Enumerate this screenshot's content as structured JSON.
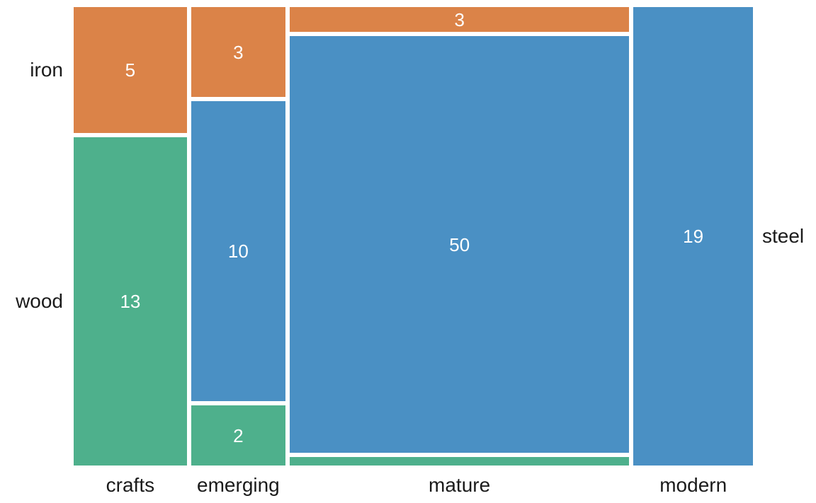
{
  "chart_data": {
    "type": "mosaic",
    "title": "",
    "background": "#ffffff",
    "label_color": "#1b1b1b",
    "cell_value_color": "#ffffff",
    "x_axis_labels": [
      "crafts",
      "emerging",
      "mature",
      "modern"
    ],
    "y_categories_top_to_bottom": [
      "iron",
      "steel",
      "wood"
    ],
    "colors": {
      "iron": "#db8348",
      "steel": "#4a90c4",
      "wood": "#4eb08c"
    },
    "cells": [
      {
        "x": "crafts",
        "y": "iron",
        "value": 5,
        "label": "5"
      },
      {
        "x": "crafts",
        "y": "wood",
        "value": 13,
        "label": "13"
      },
      {
        "x": "emerging",
        "y": "iron",
        "value": 3,
        "label": "3"
      },
      {
        "x": "emerging",
        "y": "steel",
        "value": 10,
        "label": "10"
      },
      {
        "x": "emerging",
        "y": "wood",
        "value": 2,
        "label": "2"
      },
      {
        "x": "mature",
        "y": "iron",
        "value": 3,
        "label": "3"
      },
      {
        "x": "mature",
        "y": "steel",
        "value": 50,
        "label": "50"
      },
      {
        "x": "mature",
        "y": "wood",
        "value": 1,
        "label": ""
      },
      {
        "x": "modern",
        "y": "steel",
        "value": 19,
        "label": "19"
      }
    ],
    "row_labels": [
      {
        "text": "iron",
        "side": "left",
        "column": "crafts",
        "row": "iron"
      },
      {
        "text": "wood",
        "side": "left",
        "column": "crafts",
        "row": "wood"
      },
      {
        "text": "steel",
        "side": "right",
        "column": "modern",
        "row": "steel"
      }
    ]
  }
}
